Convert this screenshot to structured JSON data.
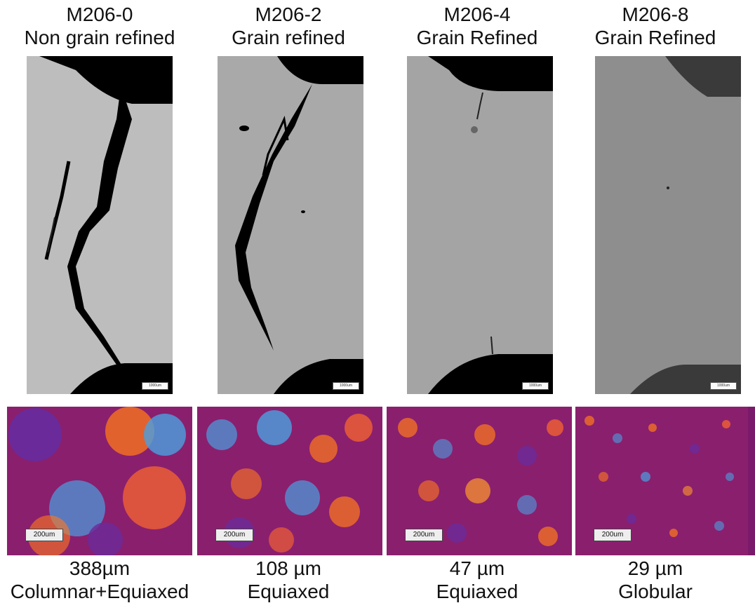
{
  "columns": [
    {
      "code": "M206-0",
      "treatment": "Non grain refined",
      "size": "388µm",
      "morphology": "Columnar+Equiaxed",
      "scale_top": "1000um",
      "scale_bottom": "200um",
      "specimen_tone": "#bdbdbd",
      "crack": "large"
    },
    {
      "code": "M206-2",
      "treatment": "Grain refined",
      "size": "108 µm",
      "morphology": "Equiaxed",
      "scale_top": "1000um",
      "scale_bottom": "200um",
      "specimen_tone": "#a9a9a9",
      "crack": "medium"
    },
    {
      "code": "M206-4",
      "treatment": "Grain Refined",
      "size": "47 µm",
      "morphology": "Equiaxed",
      "scale_top": "1000um",
      "scale_bottom": "200um",
      "specimen_tone": "#a4a4a4",
      "crack": "small"
    },
    {
      "code": "M206-8",
      "treatment": "Grain Refined",
      "size": "29 µm",
      "morphology": "Globular",
      "scale_top": "1000um",
      "scale_bottom": "200um",
      "specimen_tone": "#8e8e8e",
      "crack": "none"
    }
  ],
  "colors": {
    "void": "#000000",
    "micro_base": "#8a1f6e",
    "micro_orange": "#ff7a1a",
    "micro_blue": "#4aa0e0",
    "micro_purple": "#6a2a9a"
  }
}
